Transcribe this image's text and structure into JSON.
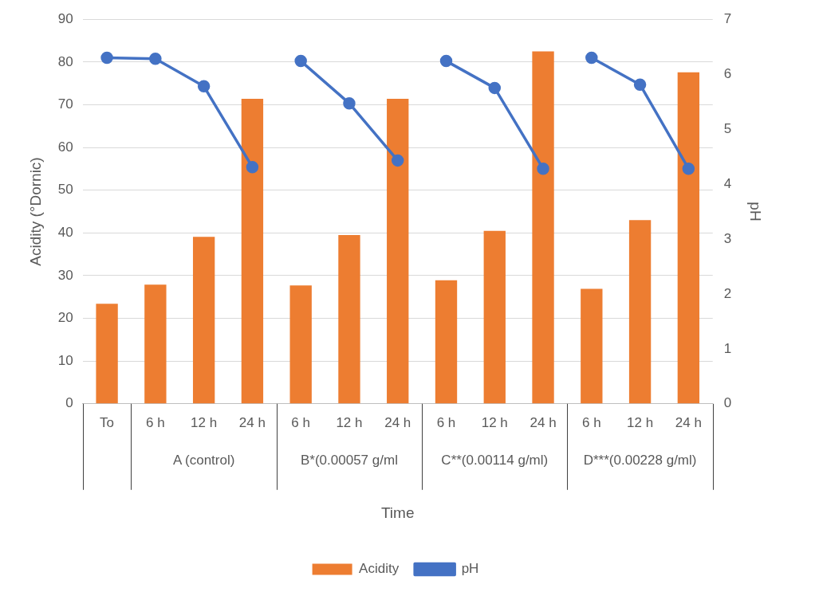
{
  "chart_data": {
    "type": "bar",
    "xlabel": "Time",
    "ylabel": "Acidity (°Dornic)",
    "y2label": "pH",
    "categories": [
      "To",
      "6 h",
      "12 h",
      "24 h",
      "6 h",
      "12 h",
      "24 h",
      "6 h",
      "12 h",
      "24 h",
      "6 h",
      "12 h",
      "24 h"
    ],
    "series": [
      {
        "name": "Acidity",
        "color": "#ed7d31",
        "values": [
          23.4,
          27.9,
          39.1,
          71.4,
          27.7,
          39.5,
          71.4,
          28.9,
          40.5,
          82.5,
          26.9,
          43,
          77.6
        ]
      },
      {
        "name": "pH",
        "type": "line",
        "axis": "y2",
        "color": "#4472c4",
        "values": [
          6.3,
          6.28,
          5.78,
          4.31,
          null,
          null,
          null,
          null,
          null,
          null,
          null,
          null,
          null
        ]
      },
      {
        "type": "line",
        "axis": "y2",
        "color": "#4472c4",
        "values": [
          null,
          null,
          null,
          null,
          6.24,
          5.47,
          4.43,
          null,
          null,
          null,
          null,
          null,
          null
        ]
      },
      {
        "type": "line",
        "axis": "y2",
        "color": "#4472c4",
        "values": [
          null,
          null,
          null,
          null,
          null,
          null,
          null,
          6.24,
          5.75,
          4.28,
          null,
          null,
          null
        ]
      },
      {
        "type": "line",
        "axis": "y2",
        "color": "#4472c4",
        "values": [
          null,
          null,
          null,
          null,
          null,
          null,
          null,
          null,
          null,
          null,
          6.3,
          5.81,
          4.28
        ]
      }
    ],
    "ylim": [
      0,
      90
    ],
    "yticks": [
      0,
      10,
      20,
      30,
      40,
      50,
      60,
      70,
      80,
      90
    ],
    "y2lim": [
      0,
      7
    ],
    "y2ticks": [
      0,
      1,
      2,
      3,
      4,
      5,
      6,
      7
    ],
    "grid": "y",
    "legend": "bottom",
    "marker": "circle",
    "annotations": [
      "A (control)",
      "B*(0.00057 g/ml",
      "C**(0.00114 g/ml)",
      "D***(0.00228 g/ml)"
    ]
  }
}
